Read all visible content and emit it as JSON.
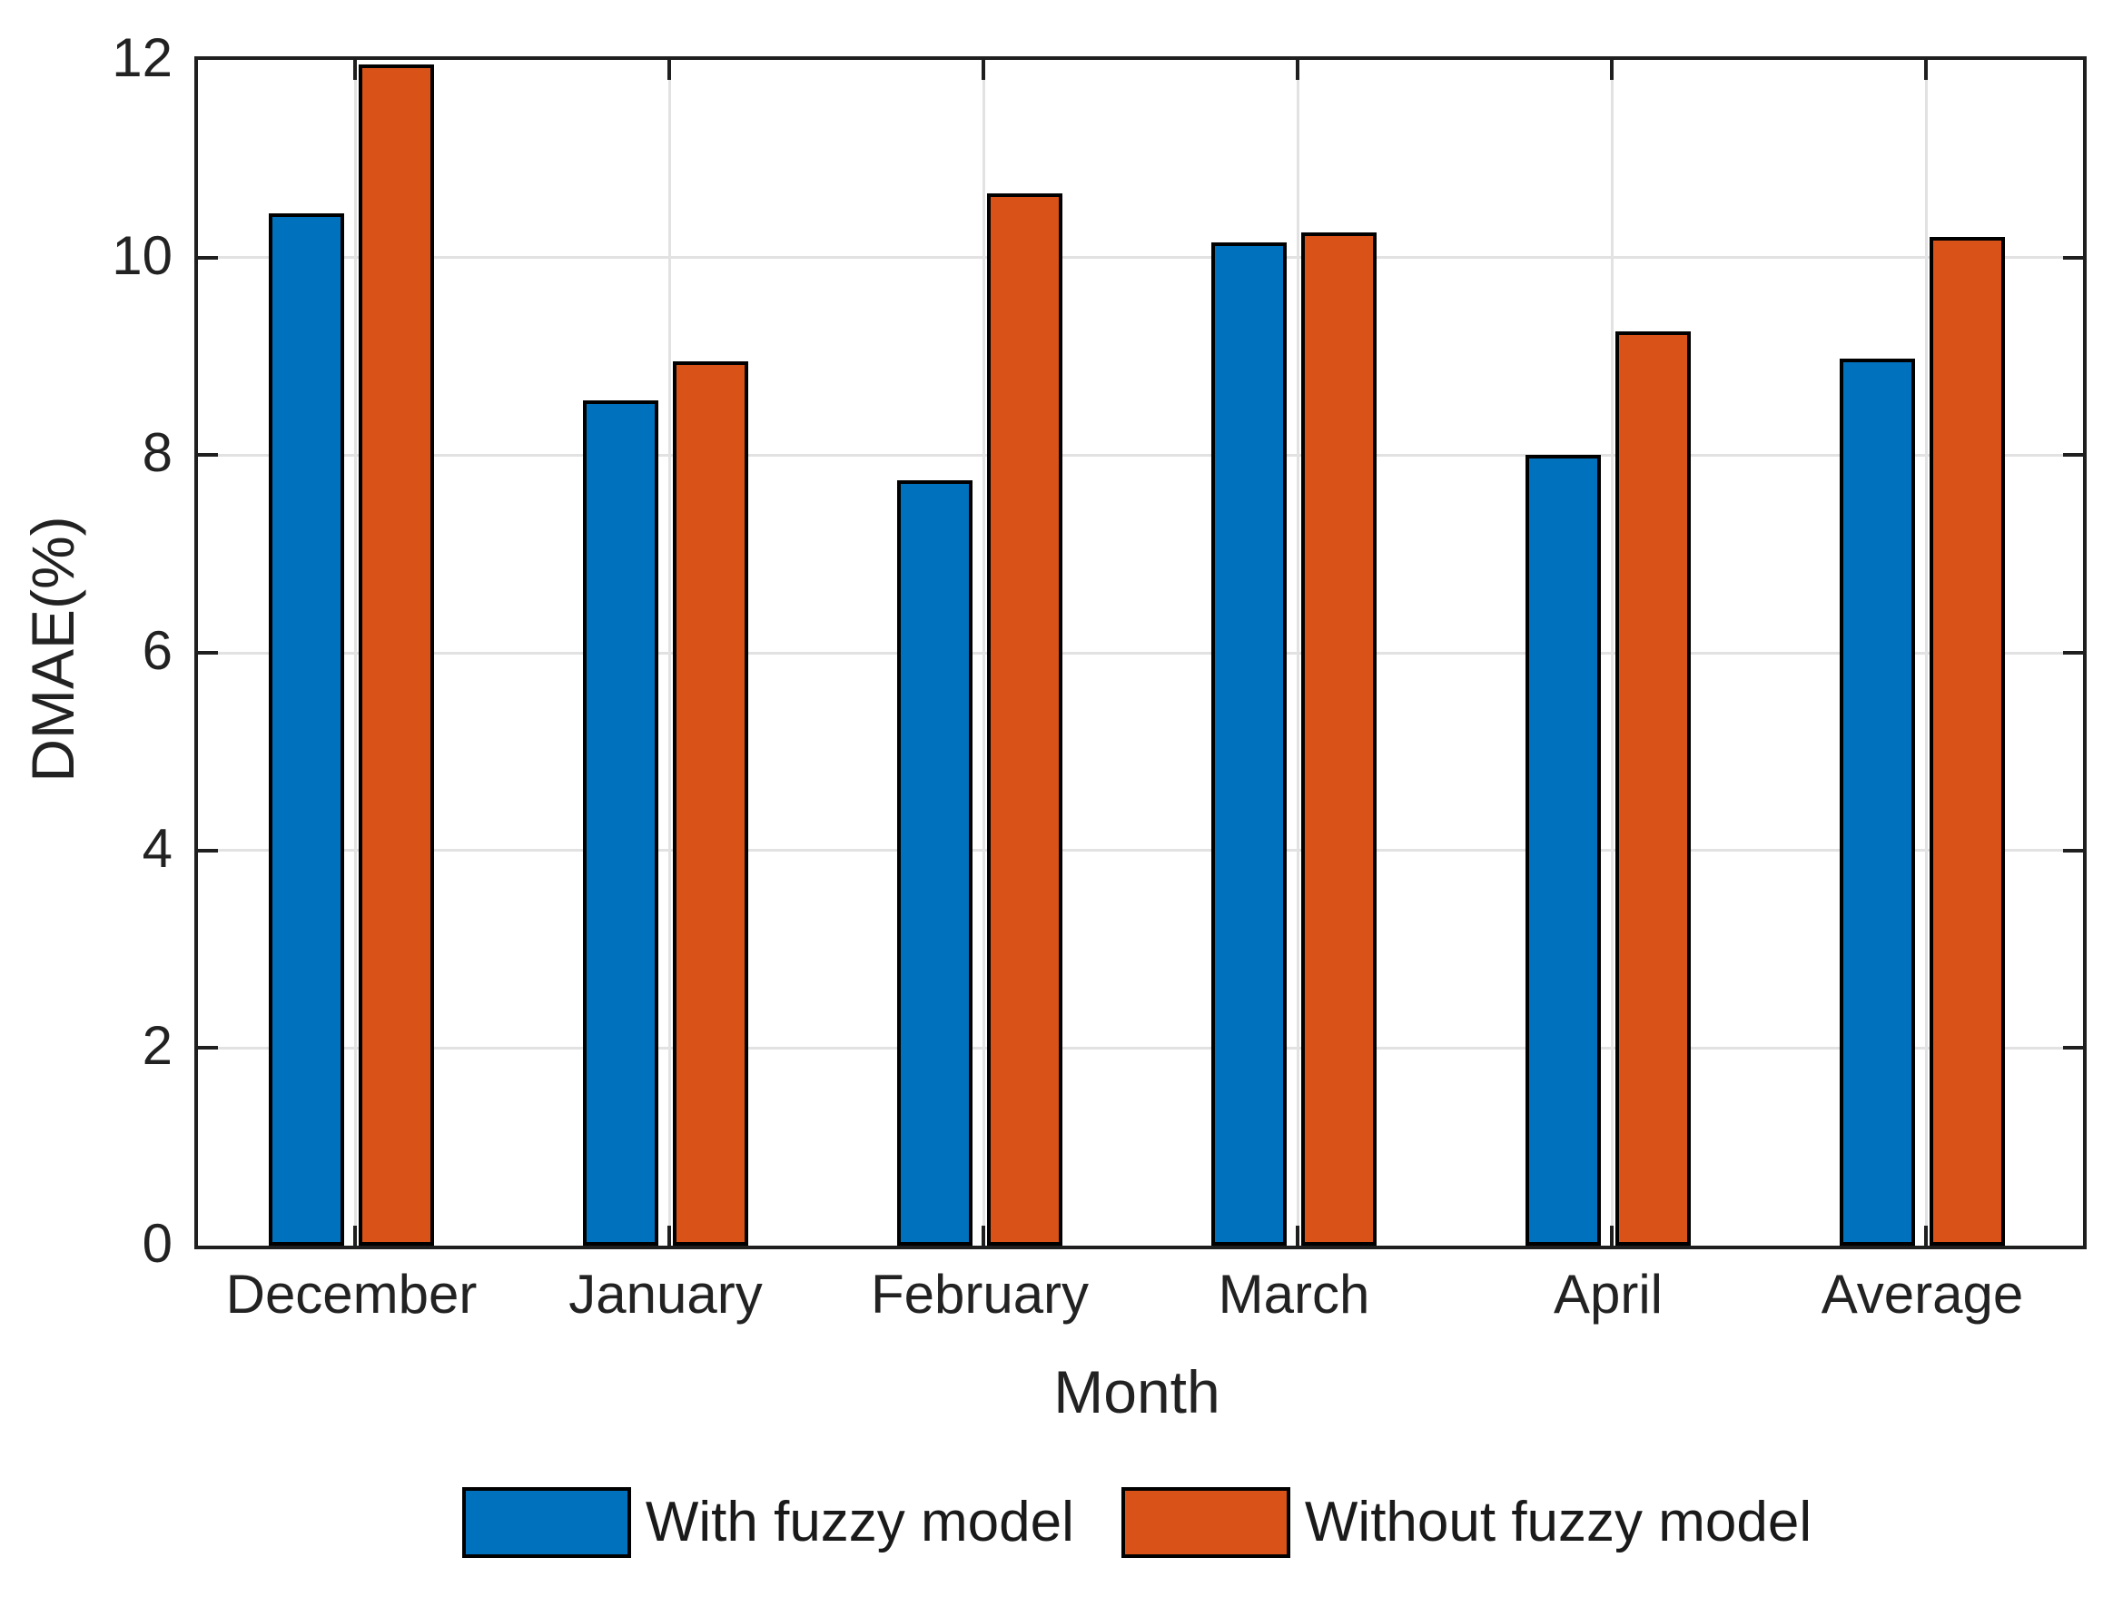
{
  "chart_data": {
    "type": "bar",
    "title": "",
    "xlabel": "Month",
    "ylabel": "DMAE(%)",
    "categories": [
      "December",
      "January",
      "February",
      "March",
      "April",
      "Average"
    ],
    "series": [
      {
        "name": "With fuzzy model",
        "color": "#0072BD",
        "values": [
          10.45,
          8.55,
          7.75,
          10.15,
          8.0,
          8.98
        ]
      },
      {
        "name": "Without fuzzy model",
        "color": "#D95319",
        "values": [
          11.95,
          8.95,
          10.65,
          10.25,
          9.25,
          10.21
        ]
      }
    ],
    "ylim": [
      0,
      12
    ],
    "yticks": [
      0,
      2,
      4,
      6,
      8,
      10,
      12
    ],
    "grid": true,
    "legend_position": "bottom",
    "bar_edge_color": "#000000",
    "axis_color": "#1f1f1f",
    "grid_color": "#e2e2e2",
    "tick_direction": "in"
  }
}
